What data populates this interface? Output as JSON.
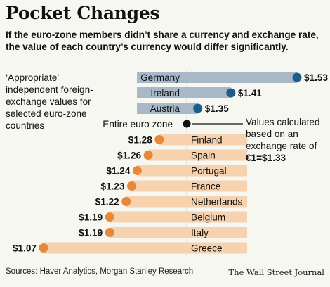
{
  "title": "Pocket Changes",
  "subtitle": "If the euro-zone members didn’t share a currency and exchange rate, the value of each country’s currency would differ significantly.",
  "note_left": "‘Appropriate’ independent foreign-exchange values for selected euro-zone countries",
  "note_right": {
    "text": "Values calculated based on an exchange rate of",
    "rate": "€1=$1.33"
  },
  "source": "Sources: Haver Analytics, Morgan Stanley Research",
  "publisher": "The Wall Street Journal",
  "colors": {
    "above": "#1b5e8a",
    "above_bar": "#a8b8c8",
    "below": "#e8893a",
    "below_bar": "#f6d2ae",
    "baseline_dot": "#111111"
  },
  "chart_data": {
    "type": "bar",
    "baseline": {
      "label": "Entire euro zone",
      "value": 1.33
    },
    "categories": [
      "Germany",
      "Ireland",
      "Austria",
      "Finland",
      "Spain",
      "Portugal",
      "France",
      "Netherlands",
      "Belgium",
      "Italy",
      "Greece"
    ],
    "values": [
      1.53,
      1.41,
      1.35,
      1.28,
      1.26,
      1.24,
      1.23,
      1.22,
      1.19,
      1.19,
      1.07
    ],
    "value_labels": [
      "$1.53",
      "$1.41",
      "$1.35",
      "$1.28",
      "$1.26",
      "$1.24",
      "$1.23",
      "$1.22",
      "$1.19",
      "$1.19",
      "$1.07"
    ]
  }
}
